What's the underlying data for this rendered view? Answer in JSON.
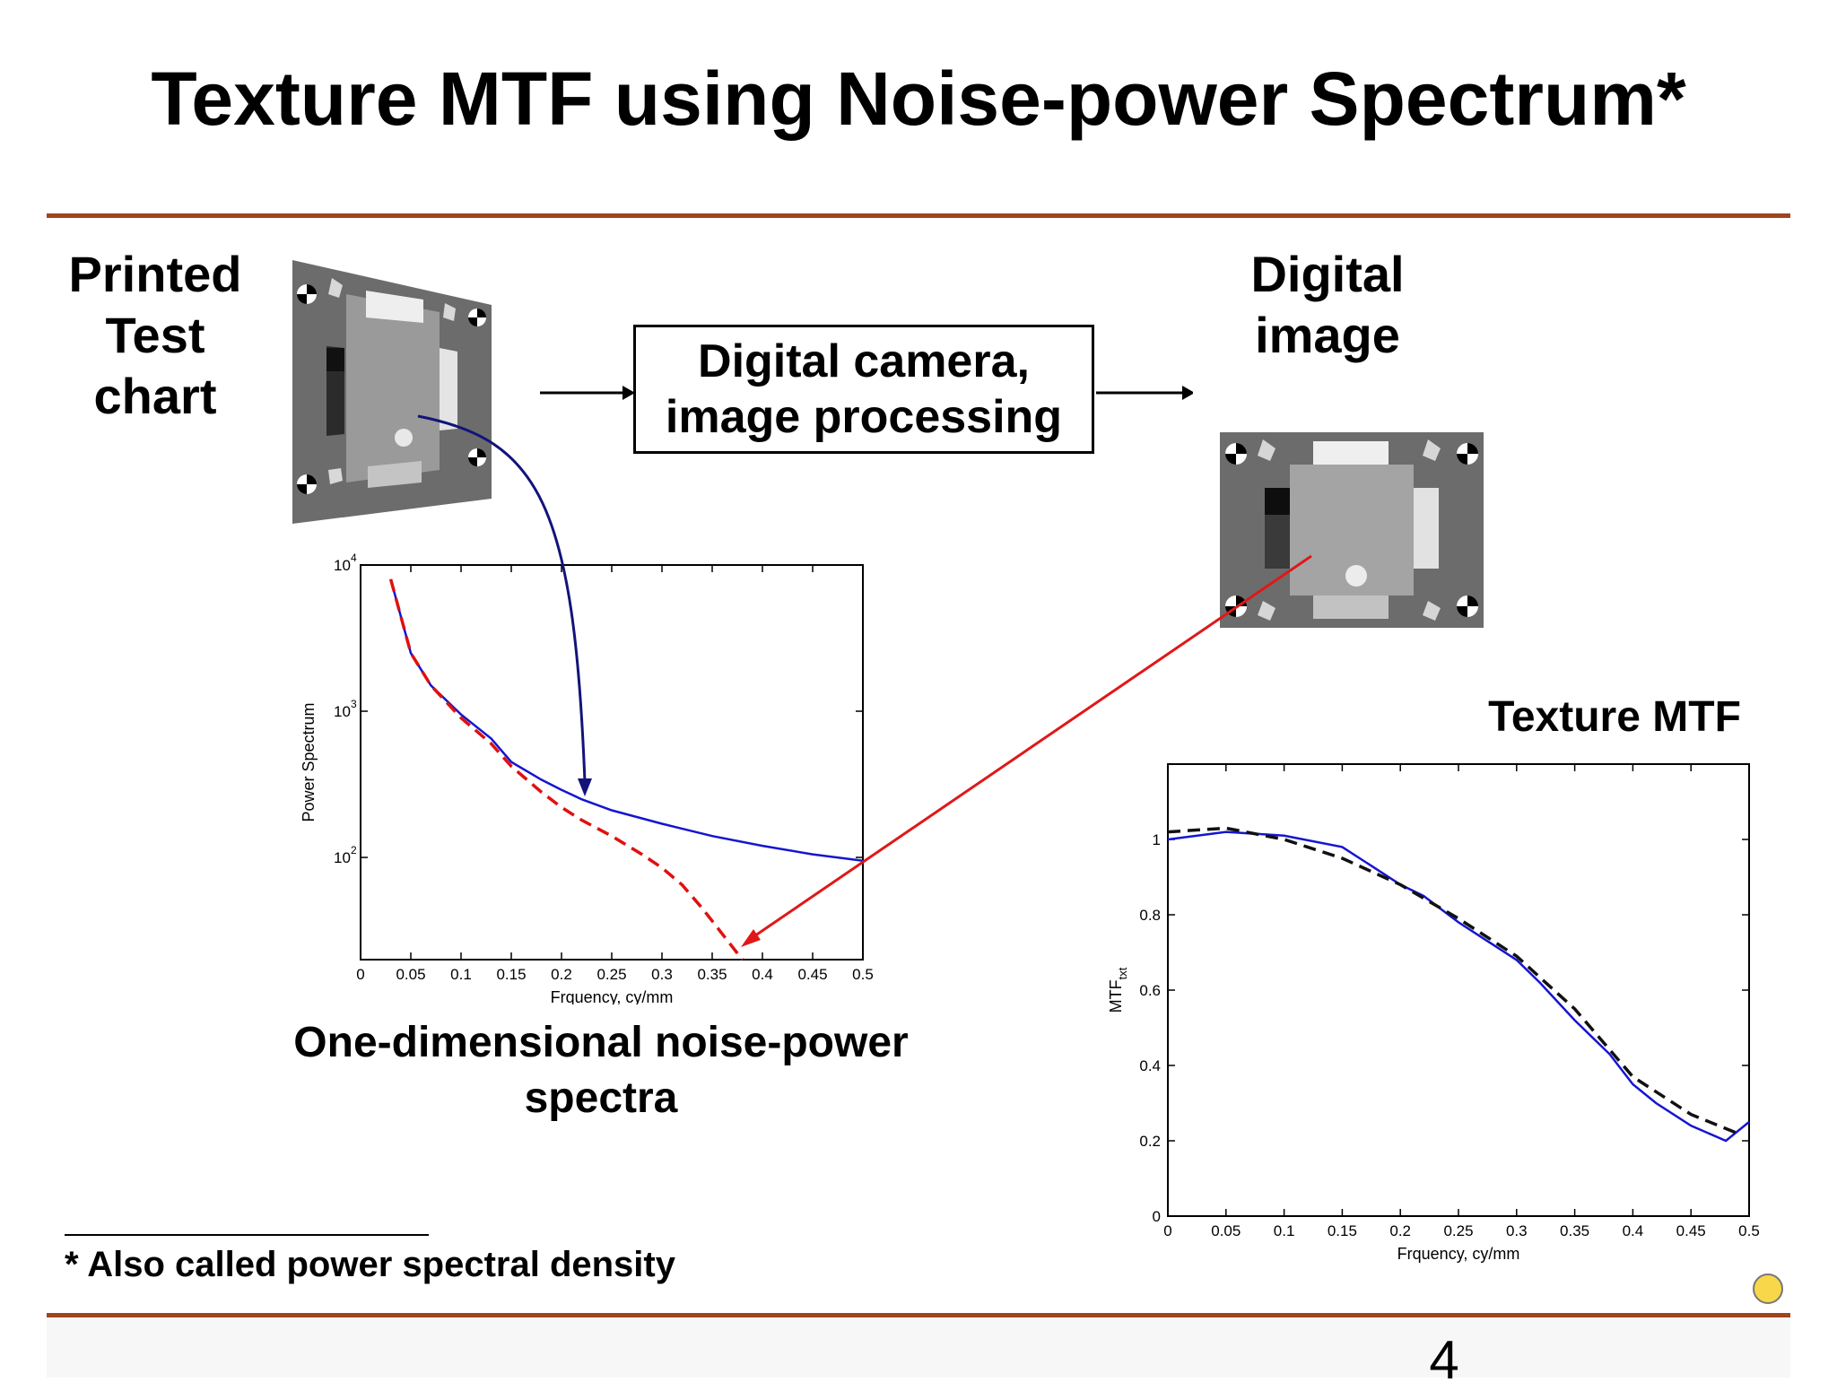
{
  "slide": {
    "title": "Texture MTF using Noise-power Spectrum*",
    "printed_chart_label": [
      "Printed",
      "Test",
      "chart"
    ],
    "process_label": [
      "Digital camera,",
      "image processing"
    ],
    "digital_image_label": [
      "Digital",
      "image"
    ],
    "spectra_caption": [
      "One-dimensional noise-power",
      "spectra"
    ],
    "texture_mtf_label": "Texture MTF",
    "footnote": "* Also called power spectral density",
    "page_number": "4",
    "accent_color": "#a0441e"
  },
  "chart_data": [
    {
      "type": "line",
      "xlabel": "Frquency, cy/mm",
      "ylabel": "Power Spectrum",
      "xlim": [
        0,
        0.5
      ],
      "ylim": [
        20,
        10000
      ],
      "yscale": "log",
      "x_ticks": [
        "0",
        "0.05",
        "0.1",
        "0.15",
        "0.2",
        "0.25",
        "0.3",
        "0.35",
        "0.4",
        "0.45",
        "0.5"
      ],
      "y_ticks": [
        {
          "base": "10",
          "exp": "2",
          "value": 100
        },
        {
          "base": "10",
          "exp": "3",
          "value": 1000
        },
        {
          "base": "10",
          "exp": "4",
          "value": 10000
        }
      ],
      "series": [
        {
          "color": "#1515d0",
          "style": "solid",
          "x": [
            0.03,
            0.05,
            0.07,
            0.1,
            0.13,
            0.15,
            0.18,
            0.2,
            0.22,
            0.25,
            0.3,
            0.35,
            0.4,
            0.45,
            0.5
          ],
          "y": [
            8000,
            2500,
            1500,
            950,
            650,
            450,
            340,
            290,
            250,
            210,
            170,
            140,
            120,
            105,
            95
          ]
        },
        {
          "color": "#e01010",
          "style": "dashed",
          "x": [
            0.03,
            0.05,
            0.07,
            0.1,
            0.13,
            0.15,
            0.18,
            0.2,
            0.22,
            0.25,
            0.28,
            0.3,
            0.32,
            0.34,
            0.36,
            0.38
          ],
          "y": [
            8000,
            2500,
            1500,
            900,
            600,
            420,
            280,
            220,
            180,
            140,
            105,
            85,
            65,
            45,
            30,
            20
          ]
        }
      ]
    },
    {
      "type": "line",
      "xlabel": "Frquency, cy/mm",
      "ylabel": "MTF",
      "ylabel_sub": "txt",
      "xlim": [
        0,
        0.5
      ],
      "ylim": [
        0,
        1.2
      ],
      "x_ticks": [
        "0",
        "0.05",
        "0.1",
        "0.15",
        "0.2",
        "0.25",
        "0.3",
        "0.35",
        "0.4",
        "0.45",
        "0.5"
      ],
      "y_ticks": [
        {
          "label": "0",
          "value": 0
        },
        {
          "label": "0.2",
          "value": 0.2
        },
        {
          "label": "0.4",
          "value": 0.4
        },
        {
          "label": "0.6",
          "value": 0.6
        },
        {
          "label": "0.8",
          "value": 0.8
        },
        {
          "label": "1",
          "value": 1.0
        }
      ],
      "series": [
        {
          "color": "#1515d0",
          "style": "solid",
          "x": [
            0,
            0.05,
            0.1,
            0.15,
            0.18,
            0.2,
            0.22,
            0.25,
            0.28,
            0.3,
            0.32,
            0.35,
            0.38,
            0.4,
            0.42,
            0.45,
            0.48,
            0.5
          ],
          "y": [
            1.0,
            1.02,
            1.01,
            0.98,
            0.92,
            0.88,
            0.85,
            0.78,
            0.72,
            0.68,
            0.62,
            0.52,
            0.43,
            0.35,
            0.3,
            0.24,
            0.2,
            0.25
          ]
        },
        {
          "color": "#111111",
          "style": "dashed",
          "x": [
            0,
            0.05,
            0.1,
            0.15,
            0.2,
            0.25,
            0.3,
            0.35,
            0.4,
            0.45,
            0.49
          ],
          "y": [
            1.02,
            1.03,
            1.0,
            0.95,
            0.88,
            0.79,
            0.69,
            0.55,
            0.37,
            0.27,
            0.22
          ]
        }
      ]
    }
  ]
}
